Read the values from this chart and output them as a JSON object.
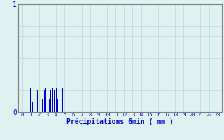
{
  "xlabel": "Précipitations 6min ( mm )",
  "background_color": "#dff2f2",
  "bar_color": "#0000cc",
  "grid_color": "#b8d8d8",
  "axis_color": "#808080",
  "text_color": "#0000cc",
  "ylim": [
    0,
    1
  ],
  "xlim": [
    -0.5,
    23.5
  ],
  "yticks": [
    0,
    1
  ],
  "xticks": [
    0,
    1,
    2,
    3,
    4,
    5,
    6,
    7,
    8,
    9,
    10,
    11,
    12,
    13,
    14,
    15,
    16,
    17,
    18,
    19,
    20,
    21,
    22,
    23
  ],
  "bar_positions": [
    0.8,
    1.0,
    1.2,
    1.4,
    1.6,
    1.8,
    2.0,
    2.2,
    2.4,
    2.6,
    2.8,
    3.0,
    3.2,
    3.4,
    3.6,
    3.8,
    4.0,
    4.2,
    4.4,
    4.8
  ],
  "bar_heights": [
    0.12,
    0.22,
    0.1,
    0.2,
    0.12,
    0.2,
    0.22,
    0.2,
    0.12,
    0.2,
    0.22,
    0.2,
    0.12,
    0.2,
    0.22,
    0.2,
    0.22,
    0.12,
    0.22,
    0.22
  ],
  "bar_width": 0.07,
  "hline_color": "#b0b0b0",
  "xlabel_fontsize": 7,
  "tick_fontsize": 5,
  "ytick_fontsize": 7
}
